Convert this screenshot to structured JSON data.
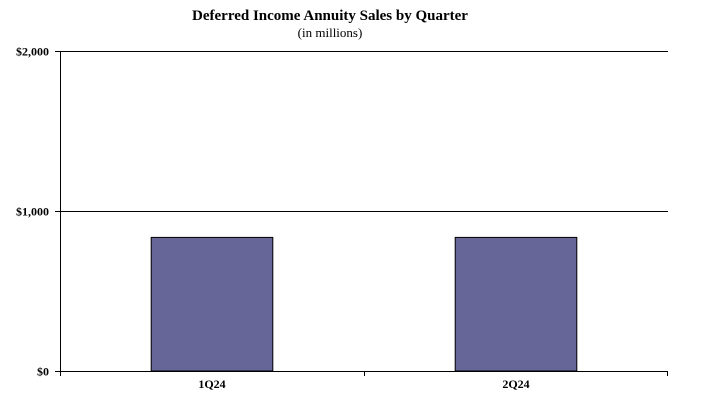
{
  "chart_data": {
    "type": "bar",
    "title": "Deferred Income Annuity Sales by Quarter",
    "subtitle": "(in millions)",
    "xlabel": "",
    "ylabel": "",
    "categories": [
      "1Q24",
      "2Q24"
    ],
    "values": [
      835,
      835
    ],
    "ylim": [
      0,
      2000
    ],
    "yticks": [
      0,
      1000,
      2000
    ],
    "ytick_labels": [
      "$0",
      "$1,000",
      "$2,000"
    ],
    "grid": true,
    "legend": "none",
    "bar_color": "#666699"
  }
}
